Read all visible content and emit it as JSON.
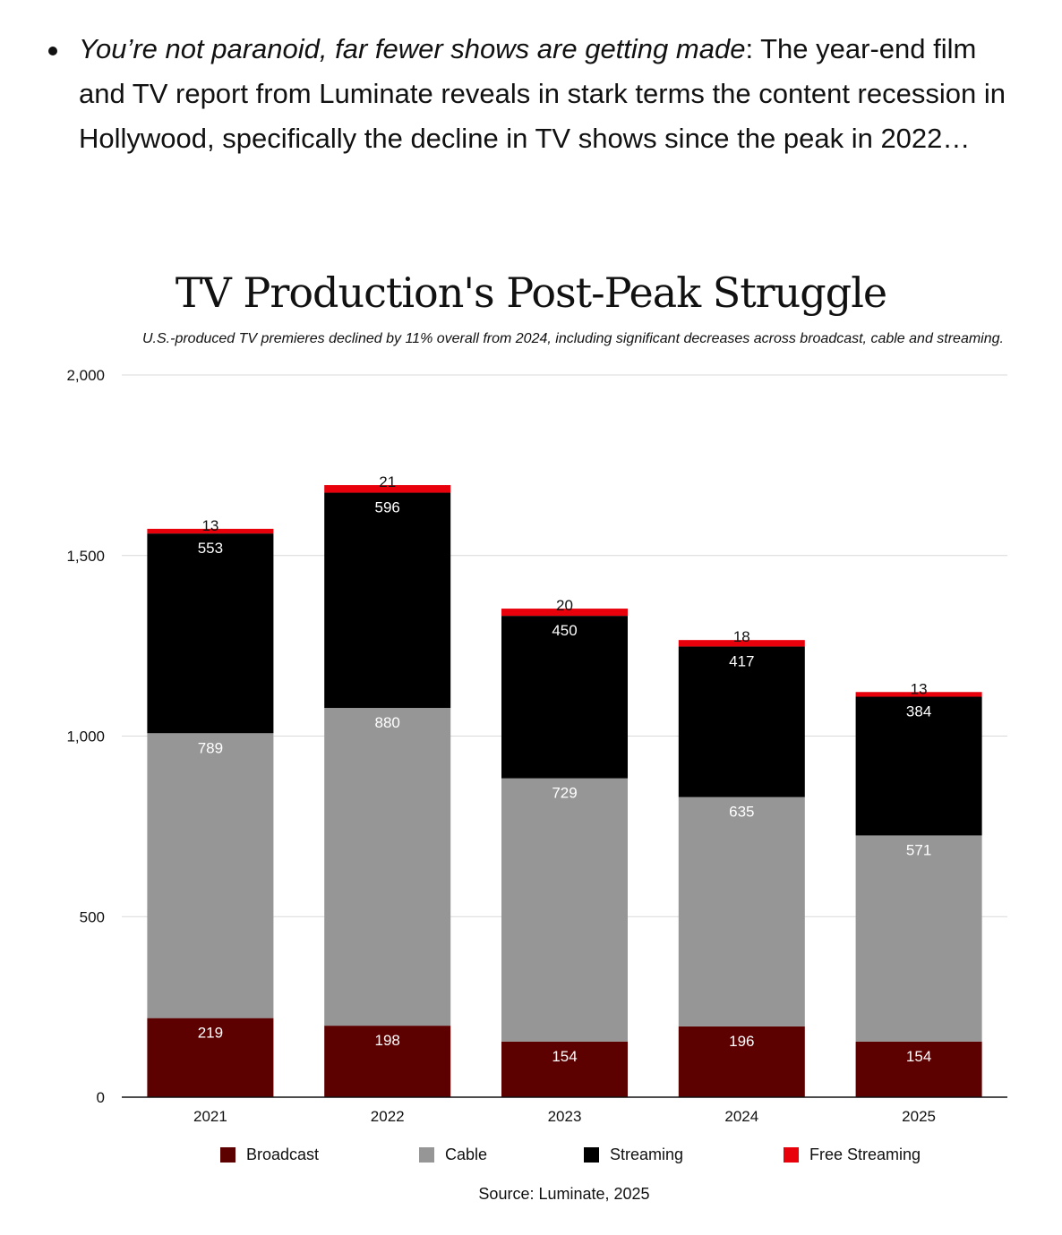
{
  "article": {
    "bullet_italic": "You’re not paranoid, far fewer shows are getting made",
    "bullet_rest": ": The year-end film and TV report from Luminate reveals in stark terms the content recession in Hollywood, specifically the decline in TV shows since the peak in 2022…"
  },
  "chart_data": {
    "type": "bar",
    "stacked": true,
    "title": "TV Production's Post-Peak Struggle",
    "subtitle": "U.S.-produced TV premieres declined by 11% overall from 2024, including significant decreases across broadcast, cable and streaming.",
    "categories": [
      "2021",
      "2022",
      "2023",
      "2024",
      "2025"
    ],
    "series": [
      {
        "name": "Broadcast",
        "color": "#5c0000",
        "label_color": "#ffffff",
        "values": [
          219,
          198,
          154,
          196,
          154
        ]
      },
      {
        "name": "Cable",
        "color": "#969696",
        "label_color": "#ffffff",
        "values": [
          789,
          880,
          729,
          635,
          571
        ]
      },
      {
        "name": "Streaming",
        "color": "#000000",
        "label_color": "#ffffff",
        "values": [
          553,
          596,
          450,
          417,
          384
        ]
      },
      {
        "name": "Free Streaming",
        "color": "#e8000b",
        "label_color": "#111111",
        "values": [
          13,
          21,
          20,
          18,
          13
        ]
      }
    ],
    "yticks": [
      "0",
      "500",
      "1,000",
      "1,500",
      "2,000"
    ],
    "ylim": [
      0,
      2000
    ],
    "xlabel": "",
    "ylabel": "",
    "grid": true,
    "legend": "bottom",
    "source": "Source: Luminate, 2025"
  }
}
